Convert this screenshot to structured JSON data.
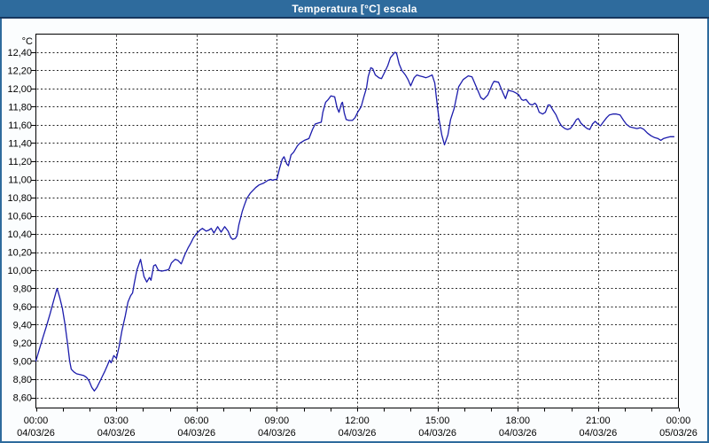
{
  "window": {
    "title": "Temperatura [°C] escala"
  },
  "colors": {
    "titlebar": "#2e6b9d",
    "titlebar_text": "#ffffff",
    "frame": "#2e6b9d",
    "frame_dark": "#17375e",
    "content_bg": "#fbfdfe",
    "plot_bg": "#ffffff",
    "plot_border": "#000000",
    "grid": "#2a2a2a",
    "line": "#1c1cac",
    "label_text": "#000000"
  },
  "chart_data": {
    "type": "line",
    "title": "Temperatura [°C] escala",
    "xlabel": "",
    "ylabel": "°C",
    "grid": true,
    "legend_position": "none",
    "ylim": [
      8.6,
      12.4
    ],
    "y_step": 0.2,
    "y_tick_labels": [
      "12,40",
      "12,20",
      "12,00",
      "11,80",
      "11,60",
      "11,40",
      "11,20",
      "11,00",
      "10,80",
      "10,60",
      "10,40",
      "10,20",
      "10,00",
      "9,80",
      "9,60",
      "9,40",
      "9,20",
      "9,00",
      "8,80",
      "8,60"
    ],
    "xlim_hours": [
      0,
      24
    ],
    "x_minor_tick_hours": 1,
    "x_ticks": [
      {
        "hours": 0,
        "time": "00:00",
        "date": "04/03/26"
      },
      {
        "hours": 3,
        "time": "03:00",
        "date": "04/03/26"
      },
      {
        "hours": 6,
        "time": "06:00",
        "date": "04/03/26"
      },
      {
        "hours": 9,
        "time": "09:00",
        "date": "04/03/26"
      },
      {
        "hours": 12,
        "time": "12:00",
        "date": "04/03/26"
      },
      {
        "hours": 15,
        "time": "15:00",
        "date": "04/03/26"
      },
      {
        "hours": 18,
        "time": "18:00",
        "date": "04/03/26"
      },
      {
        "hours": 21,
        "time": "21:00",
        "date": "04/03/26"
      },
      {
        "hours": 24,
        "time": "00:00",
        "date": "05/03/26"
      }
    ],
    "series": [
      {
        "name": "Temperatura [°C]",
        "color": "#1c1cac",
        "points": [
          [
            0,
            9.0
          ],
          [
            0.13,
            9.13
          ],
          [
            0.26,
            9.26
          ],
          [
            0.4,
            9.39
          ],
          [
            0.53,
            9.52
          ],
          [
            0.66,
            9.66
          ],
          [
            0.79,
            9.8
          ],
          [
            0.89,
            9.7
          ],
          [
            0.99,
            9.58
          ],
          [
            1.09,
            9.4
          ],
          [
            1.19,
            9.18
          ],
          [
            1.26,
            9.0
          ],
          [
            1.32,
            8.91
          ],
          [
            1.42,
            8.88
          ],
          [
            1.52,
            8.86
          ],
          [
            1.66,
            8.85
          ],
          [
            1.79,
            8.84
          ],
          [
            1.89,
            8.82
          ],
          [
            1.99,
            8.78
          ],
          [
            2.09,
            8.71
          ],
          [
            2.18,
            8.67
          ],
          [
            2.28,
            8.71
          ],
          [
            2.38,
            8.77
          ],
          [
            2.48,
            8.83
          ],
          [
            2.58,
            8.89
          ],
          [
            2.68,
            8.96
          ],
          [
            2.75,
            9.01
          ],
          [
            2.81,
            8.98
          ],
          [
            2.91,
            9.06
          ],
          [
            3.01,
            9.03
          ],
          [
            3.11,
            9.16
          ],
          [
            3.21,
            9.33
          ],
          [
            3.34,
            9.5
          ],
          [
            3.44,
            9.65
          ],
          [
            3.54,
            9.72
          ],
          [
            3.61,
            9.75
          ],
          [
            3.67,
            9.85
          ],
          [
            3.77,
            10.0
          ],
          [
            3.91,
            10.12
          ],
          [
            4.04,
            9.93
          ],
          [
            4.14,
            9.87
          ],
          [
            4.24,
            9.92
          ],
          [
            4.3,
            9.89
          ],
          [
            4.4,
            10.05
          ],
          [
            4.47,
            10.06
          ],
          [
            4.57,
            10.0
          ],
          [
            4.7,
            9.99
          ],
          [
            4.87,
            10.0
          ],
          [
            4.97,
            10.01
          ],
          [
            5.06,
            10.08
          ],
          [
            5.2,
            10.12
          ],
          [
            5.3,
            10.11
          ],
          [
            5.43,
            10.07
          ],
          [
            5.56,
            10.17
          ],
          [
            5.69,
            10.25
          ],
          [
            5.79,
            10.3
          ],
          [
            5.89,
            10.36
          ],
          [
            5.99,
            10.4
          ],
          [
            6.12,
            10.44
          ],
          [
            6.22,
            10.46
          ],
          [
            6.36,
            10.43
          ],
          [
            6.45,
            10.44
          ],
          [
            6.55,
            10.46
          ],
          [
            6.65,
            10.41
          ],
          [
            6.79,
            10.48
          ],
          [
            6.92,
            10.42
          ],
          [
            7.05,
            10.48
          ],
          [
            7.18,
            10.43
          ],
          [
            7.28,
            10.36
          ],
          [
            7.35,
            10.34
          ],
          [
            7.45,
            10.35
          ],
          [
            7.51,
            10.38
          ],
          [
            7.58,
            10.5
          ],
          [
            7.65,
            10.58
          ],
          [
            7.71,
            10.65
          ],
          [
            7.78,
            10.71
          ],
          [
            7.88,
            10.79
          ],
          [
            8.01,
            10.85
          ],
          [
            8.11,
            10.88
          ],
          [
            8.21,
            10.91
          ],
          [
            8.34,
            10.94
          ],
          [
            8.51,
            10.96
          ],
          [
            8.67,
            10.99
          ],
          [
            8.77,
            11.0
          ],
          [
            8.84,
            10.99
          ],
          [
            8.94,
            11.0
          ],
          [
            9,
            11.0
          ],
          [
            9.1,
            11.12
          ],
          [
            9.2,
            11.22
          ],
          [
            9.27,
            11.25
          ],
          [
            9.37,
            11.17
          ],
          [
            9.43,
            11.15
          ],
          [
            9.53,
            11.27
          ],
          [
            9.63,
            11.3
          ],
          [
            9.77,
            11.37
          ],
          [
            9.86,
            11.4
          ],
          [
            10.03,
            11.43
          ],
          [
            10.2,
            11.45
          ],
          [
            10.33,
            11.55
          ],
          [
            10.43,
            11.61
          ],
          [
            10.53,
            11.62
          ],
          [
            10.66,
            11.63
          ],
          [
            10.72,
            11.74
          ],
          [
            10.82,
            11.85
          ],
          [
            10.92,
            11.88
          ],
          [
            11.02,
            11.92
          ],
          [
            11.16,
            11.91
          ],
          [
            11.25,
            11.79
          ],
          [
            11.32,
            11.74
          ],
          [
            11.42,
            11.84
          ],
          [
            11.45,
            11.85
          ],
          [
            11.52,
            11.73
          ],
          [
            11.59,
            11.66
          ],
          [
            11.69,
            11.65
          ],
          [
            11.82,
            11.65
          ],
          [
            11.92,
            11.68
          ],
          [
            12.02,
            11.74
          ],
          [
            12.15,
            11.8
          ],
          [
            12.25,
            11.91
          ],
          [
            12.35,
            12.01
          ],
          [
            12.41,
            12.13
          ],
          [
            12.51,
            12.23
          ],
          [
            12.58,
            12.22
          ],
          [
            12.68,
            12.15
          ],
          [
            12.81,
            12.12
          ],
          [
            12.91,
            12.11
          ],
          [
            13.01,
            12.17
          ],
          [
            13.14,
            12.25
          ],
          [
            13.24,
            12.34
          ],
          [
            13.41,
            12.4
          ],
          [
            13.47,
            12.39
          ],
          [
            13.57,
            12.27
          ],
          [
            13.67,
            12.2
          ],
          [
            13.8,
            12.15
          ],
          [
            13.9,
            12.1
          ],
          [
            14,
            12.03
          ],
          [
            14.13,
            12.12
          ],
          [
            14.23,
            12.15
          ],
          [
            14.33,
            12.14
          ],
          [
            14.47,
            12.13
          ],
          [
            14.57,
            12.12
          ],
          [
            14.66,
            12.13
          ],
          [
            14.8,
            12.15
          ],
          [
            14.9,
            12.06
          ],
          [
            14.96,
            11.9
          ],
          [
            15.06,
            11.66
          ],
          [
            15.16,
            11.49
          ],
          [
            15.26,
            11.38
          ],
          [
            15.39,
            11.49
          ],
          [
            15.49,
            11.66
          ],
          [
            15.62,
            11.78
          ],
          [
            15.79,
            12.02
          ],
          [
            15.96,
            12.1
          ],
          [
            16.15,
            12.14
          ],
          [
            16.29,
            12.13
          ],
          [
            16.45,
            12.02
          ],
          [
            16.62,
            11.9
          ],
          [
            16.72,
            11.88
          ],
          [
            16.88,
            11.93
          ],
          [
            17.05,
            12.05
          ],
          [
            17.11,
            12.08
          ],
          [
            17.28,
            12.07
          ],
          [
            17.45,
            11.95
          ],
          [
            17.54,
            11.89
          ],
          [
            17.64,
            11.98
          ],
          [
            17.81,
            11.97
          ],
          [
            17.94,
            11.95
          ],
          [
            18.04,
            11.93
          ],
          [
            18.14,
            11.88
          ],
          [
            18.21,
            11.87
          ],
          [
            18.31,
            11.88
          ],
          [
            18.44,
            11.83
          ],
          [
            18.54,
            11.82
          ],
          [
            18.64,
            11.84
          ],
          [
            18.7,
            11.82
          ],
          [
            18.8,
            11.74
          ],
          [
            18.93,
            11.72
          ],
          [
            19.03,
            11.74
          ],
          [
            19.13,
            11.82
          ],
          [
            19.2,
            11.82
          ],
          [
            19.3,
            11.77
          ],
          [
            19.43,
            11.71
          ],
          [
            19.53,
            11.64
          ],
          [
            19.63,
            11.59
          ],
          [
            19.76,
            11.56
          ],
          [
            19.86,
            11.55
          ],
          [
            19.96,
            11.56
          ],
          [
            20.09,
            11.61
          ],
          [
            20.19,
            11.66
          ],
          [
            20.26,
            11.67
          ],
          [
            20.36,
            11.62
          ],
          [
            20.46,
            11.59
          ],
          [
            20.59,
            11.56
          ],
          [
            20.69,
            11.55
          ],
          [
            20.79,
            11.61
          ],
          [
            20.89,
            11.64
          ],
          [
            20.99,
            11.61
          ],
          [
            21.09,
            11.59
          ],
          [
            21.19,
            11.63
          ],
          [
            21.32,
            11.68
          ],
          [
            21.42,
            11.71
          ],
          [
            21.55,
            11.72
          ],
          [
            21.68,
            11.72
          ],
          [
            21.82,
            11.71
          ],
          [
            21.95,
            11.65
          ],
          [
            22.05,
            11.61
          ],
          [
            22.18,
            11.58
          ],
          [
            22.31,
            11.57
          ],
          [
            22.45,
            11.56
          ],
          [
            22.58,
            11.57
          ],
          [
            22.71,
            11.55
          ],
          [
            22.84,
            11.51
          ],
          [
            22.98,
            11.48
          ],
          [
            23.11,
            11.46
          ],
          [
            23.24,
            11.45
          ],
          [
            23.34,
            11.43
          ],
          [
            23.44,
            11.45
          ],
          [
            23.57,
            11.46
          ],
          [
            23.7,
            11.47
          ],
          [
            23.83,
            11.47
          ]
        ]
      }
    ]
  }
}
